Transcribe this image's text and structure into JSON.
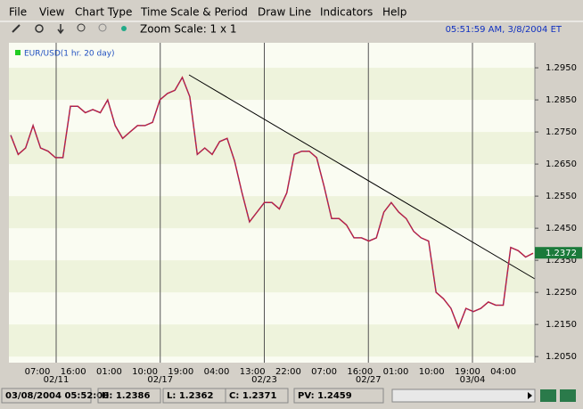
{
  "menu": [
    "File",
    "View",
    "Chart Type",
    "Time Scale & Period",
    "Draw Line",
    "Indicators",
    "Help"
  ],
  "toolbar": {
    "zoom": "Zoom Scale: 1 x 1",
    "clock": "05:51:59 AM, 3/8/2004 ET"
  },
  "chart_data": {
    "type": "line",
    "legend": "EUR/USD(1 hr. 20 day)",
    "color": "#c0203c",
    "ylim": [
      1.2031,
      1.3028
    ],
    "yticks": [
      {
        "value": 1.295,
        "label": "1.2950"
      },
      {
        "value": 1.285,
        "label": "1.2850"
      },
      {
        "value": 1.275,
        "label": "1.2750"
      },
      {
        "value": 1.265,
        "label": "1.2650"
      },
      {
        "value": 1.255,
        "label": "1.2550"
      },
      {
        "value": 1.245,
        "label": "1.2450"
      },
      {
        "value": 1.235,
        "label": "1.2350"
      },
      {
        "value": 1.225,
        "label": "1.2250"
      },
      {
        "value": 1.215,
        "label": "1.2150"
      },
      {
        "value": 1.205,
        "label": "1.2050"
      }
    ],
    "time_labels": [
      "07:00",
      "16:00",
      "01:00",
      "10:00",
      "19:00",
      "04:00",
      "13:00",
      "22:00",
      "07:00",
      "16:00",
      "01:00",
      "10:00",
      "19:00",
      "04:00"
    ],
    "date_labels": [
      "02/11",
      "02/17",
      "02/23",
      "02/27",
      "03/04"
    ],
    "values": [
      1.274,
      1.268,
      1.27,
      1.277,
      1.27,
      1.269,
      1.267,
      1.267,
      1.283,
      1.283,
      1.281,
      1.282,
      1.281,
      1.285,
      1.277,
      1.273,
      1.275,
      1.277,
      1.277,
      1.278,
      1.285,
      1.287,
      1.288,
      1.292,
      1.286,
      1.268,
      1.27,
      1.268,
      1.272,
      1.273,
      1.266,
      1.256,
      1.247,
      1.25,
      1.253,
      1.253,
      1.251,
      1.256,
      1.268,
      1.269,
      1.269,
      1.267,
      1.258,
      1.248,
      1.248,
      1.246,
      1.242,
      1.242,
      1.241,
      1.242,
      1.25,
      1.253,
      1.25,
      1.248,
      1.244,
      1.242,
      1.241,
      1.225,
      1.223,
      1.22,
      1.214,
      1.22,
      1.219,
      1.22,
      1.222,
      1.221,
      1.221,
      1.239,
      1.238,
      1.236,
      1.2372
    ],
    "last": {
      "value": 1.2372,
      "label": "1.2372"
    }
  },
  "status": [
    "03/08/2004 05:52:00",
    "H: 1.2386",
    "L: 1.2362",
    "C: 1.2371",
    "PV: 1.2459"
  ]
}
